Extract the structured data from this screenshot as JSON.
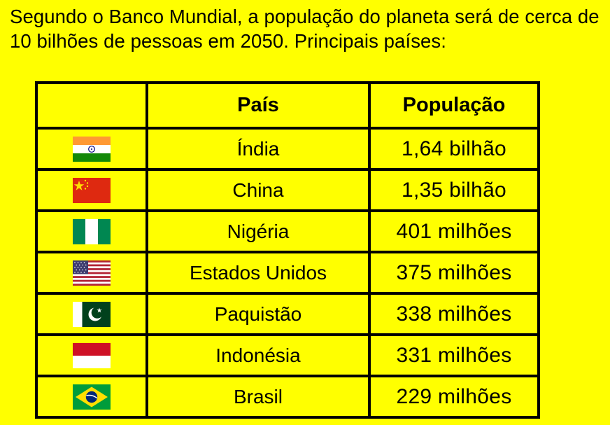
{
  "intro": "Segundo o Banco Mundial, a população do planeta será de cerca de 10 bilhões de pessoas em 2050. Principais países:",
  "table": {
    "headers": {
      "flag": "",
      "country": "País",
      "population": "População"
    },
    "rows": [
      {
        "flag": "india-flag-icon",
        "country": "Índia",
        "population": "1,64 bilhão"
      },
      {
        "flag": "china-flag-icon",
        "country": "China",
        "population": "1,35 bilhão"
      },
      {
        "flag": "nigeria-flag-icon",
        "country": "Nigéria",
        "population": "401 milhões"
      },
      {
        "flag": "usa-flag-icon",
        "country": "Estados Unidos",
        "population": "375 milhões"
      },
      {
        "flag": "pakistan-flag-icon",
        "country": "Paquistão",
        "population": "338 milhões"
      },
      {
        "flag": "indonesia-flag-icon",
        "country": "Indonésia",
        "population": "331 milhões"
      },
      {
        "flag": "brazil-flag-icon",
        "country": "Brasil",
        "population": "229 milhões"
      }
    ]
  },
  "colors": {
    "background": "#ffff00",
    "border": "#000000",
    "text": "#000000"
  }
}
